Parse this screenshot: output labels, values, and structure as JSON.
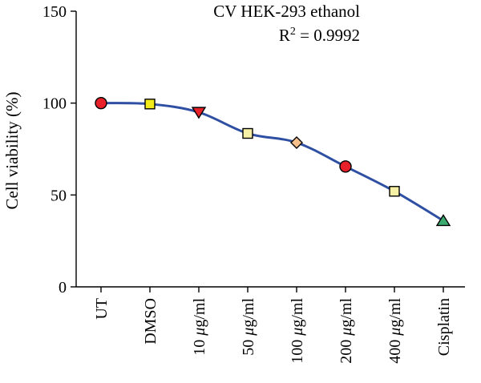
{
  "chart_data": {
    "type": "line",
    "title": "CV HEK-293 ethanol",
    "annotation": {
      "prefix": "R",
      "superscript": "2",
      "suffix": " = 0.9992"
    },
    "xlabel": "",
    "ylabel": "Cell viability (%)",
    "ylim": [
      0,
      150
    ],
    "yticks": [
      "0",
      "50",
      "100",
      "150"
    ],
    "categories": [
      "UT",
      "DMSO",
      "10 μg/ml",
      "50 μg/ml",
      "100 μg/ml",
      "200 μg/ml",
      "400 μg/ml",
      "Cisplatin"
    ],
    "category_parts": [
      {
        "pre": "UT",
        "mu": "",
        "post": ""
      },
      {
        "pre": "DMSO",
        "mu": "",
        "post": ""
      },
      {
        "pre": "10 ",
        "mu": "μ",
        "post": "g/ml"
      },
      {
        "pre": "50 ",
        "mu": "μ",
        "post": "g/ml"
      },
      {
        "pre": "100 ",
        "mu": "μ",
        "post": "g/ml"
      },
      {
        "pre": "200 ",
        "mu": "μ",
        "post": "g/ml"
      },
      {
        "pre": "400 ",
        "mu": "μ",
        "post": "g/ml"
      },
      {
        "pre": "Cisplatin",
        "mu": "",
        "post": ""
      }
    ],
    "values": [
      100,
      99.5,
      95,
      83.5,
      78.5,
      65.5,
      52,
      36
    ],
    "markers": [
      {
        "shape": "circle",
        "color": "#e8202a"
      },
      {
        "shape": "square",
        "color": "#f2ea1a"
      },
      {
        "shape": "triangle-down",
        "color": "#e8202a"
      },
      {
        "shape": "square",
        "color": "#f5f0a6"
      },
      {
        "shape": "diamond",
        "color": "#f6c08c"
      },
      {
        "shape": "circle",
        "color": "#e8202a"
      },
      {
        "shape": "square",
        "color": "#f5f0a6"
      },
      {
        "shape": "triangle-up",
        "color": "#3aaa6e"
      }
    ],
    "line_color": "#2f4fa3",
    "grid": false,
    "legend": "none"
  }
}
